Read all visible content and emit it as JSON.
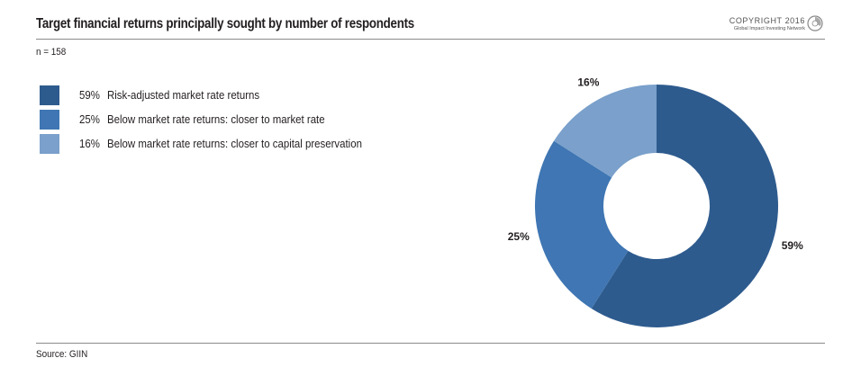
{
  "header": {
    "title": "Target financial returns principally sought by number of respondents",
    "copyright_line1": "COPYRIGHT 2016",
    "copyright_line2": "Global Impact Investing Network"
  },
  "sample_size": "n = 158",
  "source": "Source: GIIN",
  "colors": {
    "dark": "#2e5b8e",
    "medium": "#3f76b3",
    "light": "#7aa0cb"
  },
  "legend": [
    {
      "pct": "59%",
      "label": "Risk-adjusted market rate returns"
    },
    {
      "pct": "25%",
      "label": "Below market rate returns: closer to market rate"
    },
    {
      "pct": "16%",
      "label": "Below market rate returns: closer to capital preservation"
    }
  ],
  "chart_data": {
    "type": "pie",
    "subtype": "donut",
    "title": "Target financial returns principally sought by number of respondents",
    "categories": [
      "Risk-adjusted market rate returns",
      "Below market rate returns: closer to market rate",
      "Below market rate returns: closer to capital preservation"
    ],
    "values": [
      59,
      25,
      16
    ],
    "labels": [
      "59%",
      "25%",
      "16%"
    ],
    "colors": [
      "#2e5b8e",
      "#3f76b3",
      "#7aa0cb"
    ],
    "legend_position": "left"
  }
}
